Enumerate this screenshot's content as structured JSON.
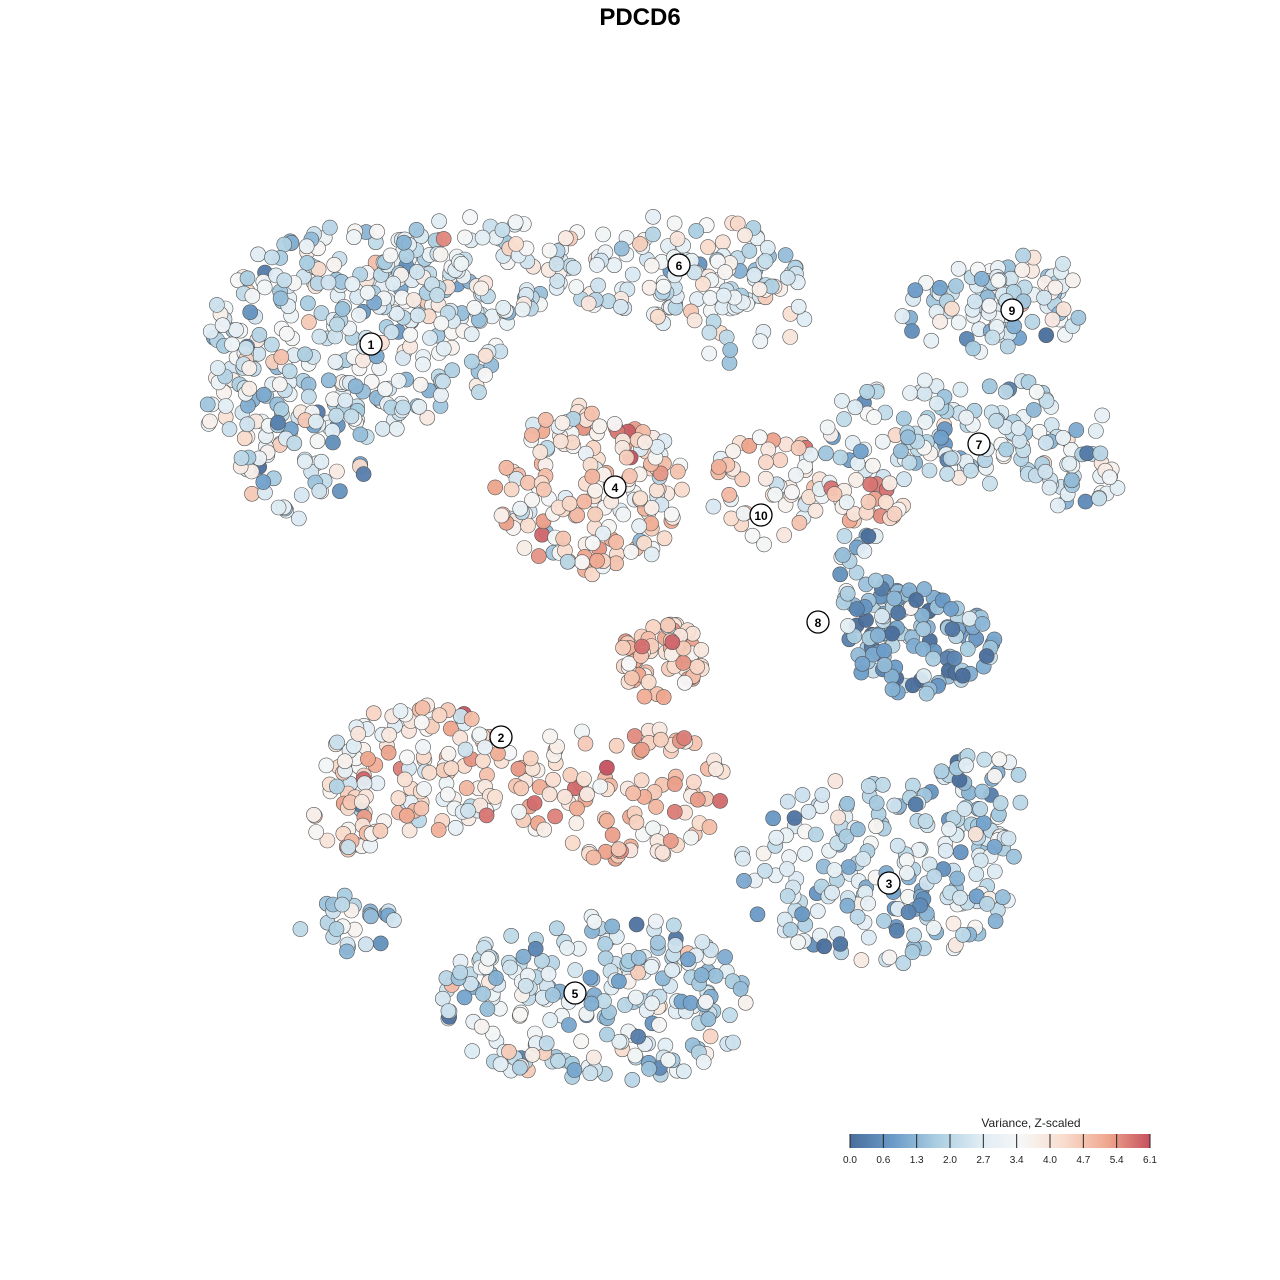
{
  "chart_data": {
    "type": "scatter",
    "title": "PDCD6",
    "xlabel": "",
    "ylabel": "",
    "grid": false,
    "legend_position": "bottom-right",
    "colorbar": {
      "title": "Variance, Z-scaled",
      "min": 0.0,
      "max": 6.1,
      "ticks": [
        "0.0",
        "0.6",
        "1.3",
        "2.0",
        "2.7",
        "3.4",
        "4.0",
        "4.7",
        "5.4",
        "6.1"
      ],
      "colors": [
        "#4a6e9c",
        "#6a9bc8",
        "#a9cde1",
        "#ddebf3",
        "#f7f7f7",
        "#f9dccd",
        "#efa88f",
        "#c6505e"
      ]
    },
    "clusters": [
      {
        "label": "1",
        "value": 2.6
      },
      {
        "label": "2",
        "value": 3.9
      },
      {
        "label": "3",
        "value": 2.1
      },
      {
        "label": "4",
        "value": 4.0
      },
      {
        "label": "5",
        "value": 2.3
      },
      {
        "label": "6",
        "value": 2.8
      },
      {
        "label": "7",
        "value": 2.5
      },
      {
        "label": "8",
        "value": 1.4
      },
      {
        "label": "9",
        "value": 2.6
      },
      {
        "label": "10",
        "value": 3.9
      }
    ]
  }
}
